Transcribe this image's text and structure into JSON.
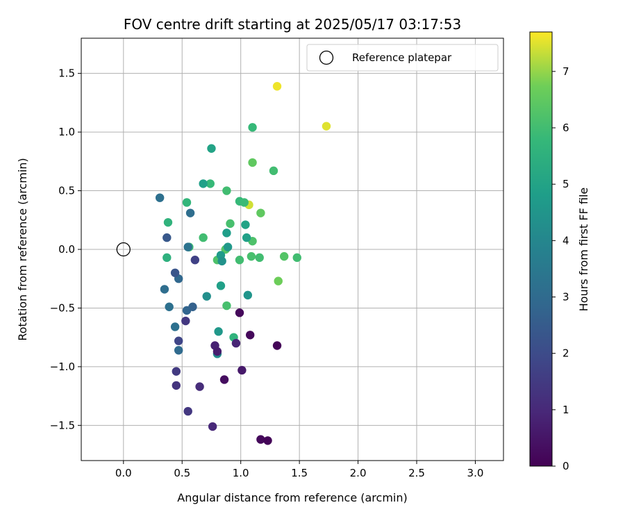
{
  "chart_data": {
    "type": "scatter",
    "title": "FOV centre drift starting at 2025/05/17 03:17:53",
    "xlabel": "Angular distance from reference (arcmin)",
    "ylabel": "Rotation from reference (arcmin)",
    "xlim": [
      -0.36,
      3.24
    ],
    "ylim": [
      -1.8,
      1.8
    ],
    "xticks": [
      0.0,
      0.5,
      1.0,
      1.5,
      2.0,
      2.5,
      3.0
    ],
    "xtick_labels": [
      "0.0",
      "0.5",
      "1.0",
      "1.5",
      "2.0",
      "2.5",
      "3.0"
    ],
    "yticks": [
      -1.5,
      -1.0,
      -0.5,
      0.0,
      0.5,
      1.0,
      1.5
    ],
    "ytick_labels": [
      "−1.5",
      "−1.0",
      "−0.5",
      "0.0",
      "0.5",
      "1.0",
      "1.5"
    ],
    "grid": true,
    "legend": {
      "location": "upper right",
      "entries": [
        "Reference platepar"
      ]
    },
    "reference_point": {
      "x": 0.0,
      "y": 0.0,
      "label": "Reference platepar"
    },
    "colorbar": {
      "label": "Hours from first FF file",
      "colormap": "viridis",
      "range": [
        0,
        7.7
      ],
      "ticks": [
        0,
        1,
        2,
        3,
        4,
        5,
        6,
        7
      ],
      "tick_labels": [
        "0",
        "1",
        "2",
        "3",
        "4",
        "5",
        "6",
        "7"
      ]
    },
    "points": [
      {
        "x": 1.31,
        "y": 1.39,
        "hours": 7.6
      },
      {
        "x": 1.73,
        "y": 1.05,
        "hours": 7.5
      },
      {
        "x": 1.07,
        "y": 0.38,
        "hours": 7.4
      },
      {
        "x": 1.1,
        "y": 0.74,
        "hours": 6.5
      },
      {
        "x": 1.17,
        "y": 0.31,
        "hours": 6.5
      },
      {
        "x": 1.32,
        "y": -0.27,
        "hours": 6.7
      },
      {
        "x": 1.37,
        "y": -0.06,
        "hours": 6.3
      },
      {
        "x": 1.48,
        "y": -0.07,
        "hours": 6.0
      },
      {
        "x": 1.16,
        "y": -0.07,
        "hours": 6.0
      },
      {
        "x": 1.09,
        "y": -0.06,
        "hours": 6.1
      },
      {
        "x": 0.99,
        "y": -0.09,
        "hours": 6.0
      },
      {
        "x": 1.1,
        "y": 0.07,
        "hours": 6.2
      },
      {
        "x": 0.91,
        "y": 0.22,
        "hours": 6.1
      },
      {
        "x": 0.88,
        "y": 0.5,
        "hours": 6.0
      },
      {
        "x": 0.99,
        "y": 0.41,
        "hours": 5.8
      },
      {
        "x": 1.03,
        "y": 0.4,
        "hours": 5.9
      },
      {
        "x": 0.88,
        "y": -0.48,
        "hours": 6.1
      },
      {
        "x": 0.8,
        "y": -0.09,
        "hours": 6.2
      },
      {
        "x": 0.87,
        "y": 0.0,
        "hours": 6.3
      },
      {
        "x": 1.28,
        "y": 0.67,
        "hours": 6.0
      },
      {
        "x": 1.1,
        "y": 1.04,
        "hours": 5.8
      },
      {
        "x": 0.74,
        "y": 0.56,
        "hours": 5.8
      },
      {
        "x": 0.68,
        "y": 0.1,
        "hours": 6.0
      },
      {
        "x": 0.56,
        "y": 0.02,
        "hours": 5.9
      },
      {
        "x": 0.54,
        "y": 0.4,
        "hours": 5.7
      },
      {
        "x": 0.38,
        "y": 0.23,
        "hours": 5.6
      },
      {
        "x": 0.37,
        "y": -0.07,
        "hours": 5.5
      },
      {
        "x": 0.94,
        "y": -0.75,
        "hours": 5.6
      },
      {
        "x": 0.75,
        "y": 0.86,
        "hours": 5.0
      },
      {
        "x": 0.68,
        "y": 0.56,
        "hours": 4.9
      },
      {
        "x": 1.04,
        "y": 0.21,
        "hours": 5.0
      },
      {
        "x": 1.05,
        "y": 0.1,
        "hours": 4.9
      },
      {
        "x": 0.88,
        "y": 0.14,
        "hours": 4.8
      },
      {
        "x": 0.89,
        "y": 0.02,
        "hours": 4.6
      },
      {
        "x": 0.83,
        "y": -0.05,
        "hours": 4.7
      },
      {
        "x": 0.84,
        "y": -0.1,
        "hours": 4.4
      },
      {
        "x": 0.83,
        "y": -0.31,
        "hours": 4.9
      },
      {
        "x": 1.06,
        "y": -0.39,
        "hours": 4.5
      },
      {
        "x": 0.71,
        "y": -0.4,
        "hours": 4.3
      },
      {
        "x": 0.81,
        "y": -0.7,
        "hours": 4.6
      },
      {
        "x": 0.8,
        "y": -0.89,
        "hours": 4.2
      },
      {
        "x": 0.31,
        "y": 0.44,
        "hours": 3.2
      },
      {
        "x": 0.57,
        "y": 0.31,
        "hours": 3.1
      },
      {
        "x": 0.55,
        "y": 0.02,
        "hours": 3.3
      },
      {
        "x": 0.39,
        "y": -0.49,
        "hours": 3.2
      },
      {
        "x": 0.35,
        "y": -0.34,
        "hours": 3.1
      },
      {
        "x": 0.47,
        "y": -0.25,
        "hours": 2.9
      },
      {
        "x": 0.54,
        "y": -0.52,
        "hours": 2.8
      },
      {
        "x": 0.59,
        "y": -0.49,
        "hours": 2.7
      },
      {
        "x": 0.44,
        "y": -0.66,
        "hours": 3.2
      },
      {
        "x": 0.47,
        "y": -0.86,
        "hours": 3.0
      },
      {
        "x": 0.37,
        "y": 0.1,
        "hours": 2.4
      },
      {
        "x": 0.44,
        "y": -0.2,
        "hours": 2.3
      },
      {
        "x": 0.61,
        "y": -0.09,
        "hours": 1.7
      },
      {
        "x": 0.47,
        "y": -0.78,
        "hours": 1.8
      },
      {
        "x": 0.53,
        "y": -0.61,
        "hours": 1.4
      },
      {
        "x": 0.45,
        "y": -1.04,
        "hours": 1.5
      },
      {
        "x": 0.45,
        "y": -1.16,
        "hours": 1.3
      },
      {
        "x": 0.55,
        "y": -1.38,
        "hours": 1.4
      },
      {
        "x": 0.65,
        "y": -1.17,
        "hours": 1.1
      },
      {
        "x": 0.76,
        "y": -1.51,
        "hours": 1.0
      },
      {
        "x": 0.78,
        "y": -0.82,
        "hours": 0.8
      },
      {
        "x": 0.8,
        "y": -0.87,
        "hours": 0.7
      },
      {
        "x": 0.96,
        "y": -0.8,
        "hours": 0.9
      },
      {
        "x": 1.01,
        "y": -1.03,
        "hours": 0.6
      },
      {
        "x": 0.86,
        "y": -1.11,
        "hours": 0.3
      },
      {
        "x": 0.99,
        "y": -0.54,
        "hours": 0.2
      },
      {
        "x": 1.08,
        "y": -0.73,
        "hours": 0.2
      },
      {
        "x": 1.31,
        "y": -0.82,
        "hours": 0.1
      },
      {
        "x": 1.17,
        "y": -1.62,
        "hours": 0.2
      },
      {
        "x": 1.23,
        "y": -1.63,
        "hours": 0.1
      }
    ]
  }
}
